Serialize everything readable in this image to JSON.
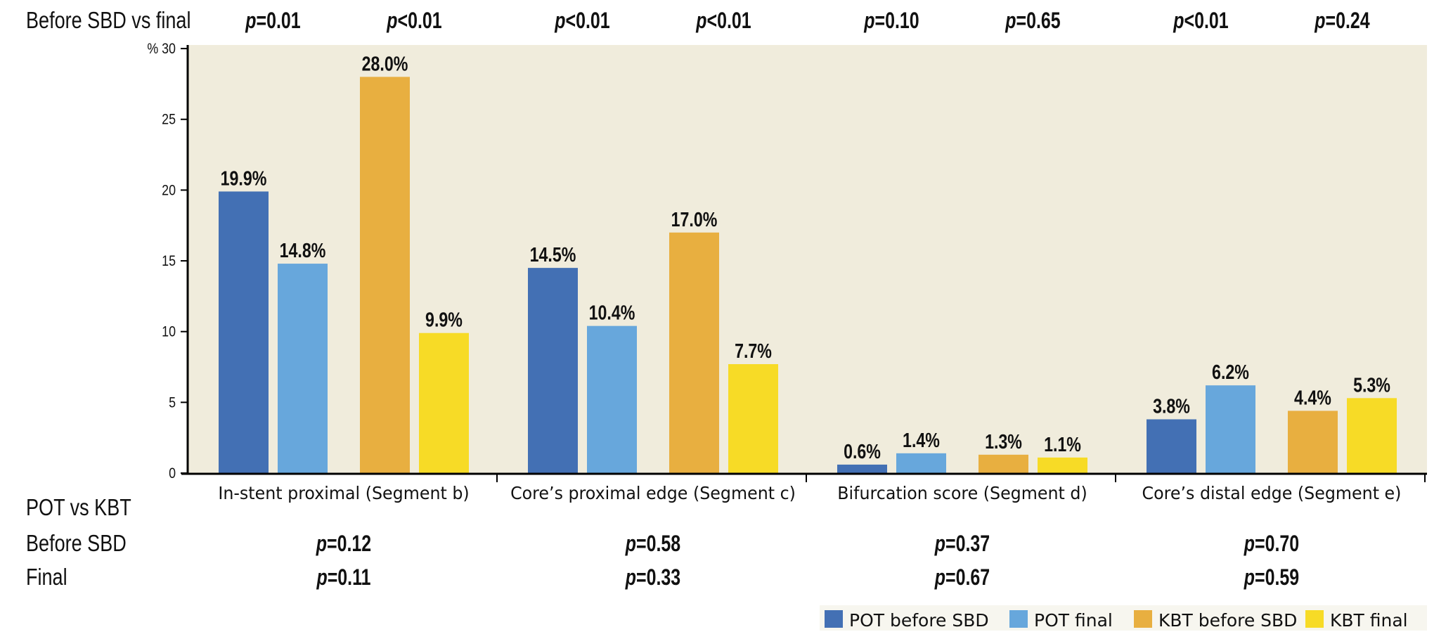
{
  "chart_data": {
    "type": "bar",
    "title": "",
    "xlabel": "",
    "ylabel": "%",
    "ylim": [
      0,
      30
    ],
    "yticks": [
      0,
      5,
      10,
      15,
      20,
      25,
      30
    ],
    "ytick_labels": [
      "0",
      "5",
      "10",
      "15",
      "20",
      "25",
      "% 30"
    ],
    "grid": false,
    "categories": [
      "In-stent proximal (Segment b)",
      "Core’s proximal edge (Segment c)",
      "Bifurcation score (Segment d)",
      "Core’s distal edge (Segment e)"
    ],
    "series": [
      {
        "name": "POT before SBD",
        "color": "#4370b4",
        "values": [
          19.9,
          14.5,
          0.6,
          3.8
        ],
        "labels": [
          "19.9%",
          "14.5%",
          "0.6%",
          "3.8%"
        ]
      },
      {
        "name": "POT final",
        "color": "#67a7dc",
        "values": [
          14.8,
          10.4,
          1.4,
          6.2
        ],
        "labels": [
          "14.8%",
          "10.4%",
          "1.4%",
          "6.2%"
        ]
      },
      {
        "name": "KBT before SBD",
        "color": "#e8af40",
        "values": [
          28.0,
          17.0,
          1.3,
          4.4
        ],
        "labels": [
          "28.0%",
          "17.0%",
          "1.3%",
          "4.4%"
        ]
      },
      {
        "name": "KBT final",
        "color": "#f7db26",
        "values": [
          9.9,
          7.7,
          1.1,
          5.3
        ],
        "labels": [
          "9.9%",
          "7.7%",
          "1.1%",
          "5.3%"
        ]
      }
    ],
    "legend": {
      "position": "bottom-right",
      "entries": [
        "POT before SBD",
        "POT final",
        "KBT before SBD",
        "KBT final"
      ]
    },
    "plot_background": "#f0ecdc",
    "annotations": {
      "top_row_label": "Before SBD vs final",
      "top_row": [
        {
          "p": "p",
          "rest": "=0.01"
        },
        {
          "p": "p",
          "rest": "<0.01"
        },
        {
          "p": "p",
          "rest": "<0.01"
        },
        {
          "p": "p",
          "rest": "<0.01"
        },
        {
          "p": "p",
          "rest": "=0.10"
        },
        {
          "p": "p",
          "rest": "=0.65"
        },
        {
          "p": "p",
          "rest": "<0.01"
        },
        {
          "p": "p",
          "rest": "=0.24"
        }
      ],
      "bottom_header": "POT vs KBT",
      "bottom_rows": [
        {
          "label": "Before SBD",
          "values": [
            {
              "p": "p",
              "rest": "=0.12"
            },
            {
              "p": "p",
              "rest": "=0.58"
            },
            {
              "p": "p",
              "rest": "=0.37"
            },
            {
              "p": "p",
              "rest": "=0.70"
            }
          ]
        },
        {
          "label": "Final",
          "values": [
            {
              "p": "p",
              "rest": "=0.11"
            },
            {
              "p": "p",
              "rest": "=0.33"
            },
            {
              "p": "p",
              "rest": "=0.67"
            },
            {
              "p": "p",
              "rest": "=0.59"
            }
          ]
        }
      ]
    }
  }
}
